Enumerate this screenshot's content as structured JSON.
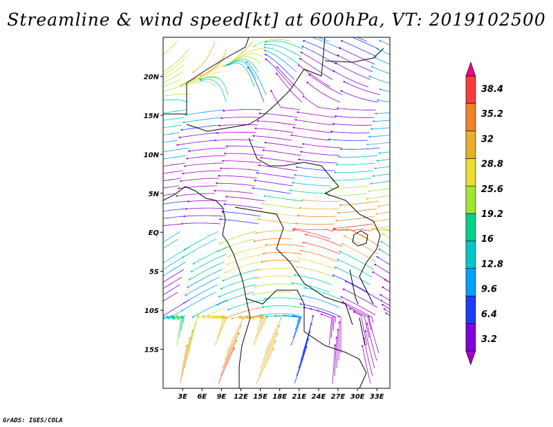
{
  "title": "Streamline & wind speed[kt] at 600hPa, VT: 2019102500",
  "credit": "GrADS: IGES/COLA",
  "map": {
    "lon_range": [
      0,
      35
    ],
    "lat_range": [
      -20,
      25
    ],
    "lon_ticks": [
      "3E",
      "6E",
      "9E",
      "12E",
      "15E",
      "18E",
      "21E",
      "24E",
      "27E",
      "30E",
      "33E"
    ],
    "lon_tick_values": [
      3,
      6,
      9,
      12,
      15,
      18,
      21,
      24,
      27,
      30,
      33
    ],
    "lat_ticks": [
      "20N",
      "15N",
      "10N",
      "5N",
      "EQ",
      "5S",
      "10S",
      "15S"
    ],
    "lat_tick_values": [
      20,
      15,
      10,
      5,
      0,
      -5,
      -10,
      -15
    ]
  },
  "colorbar": {
    "labels": [
      "38.4",
      "35.2",
      "32",
      "28.8",
      "25.6",
      "19.2",
      "16",
      "12.8",
      "9.6",
      "6.4",
      "3.2"
    ],
    "colors": [
      "#a000c8",
      "#8200dc",
      "#1e3cff",
      "#00a0ff",
      "#00c8c8",
      "#00d28c",
      "#a0e632",
      "#e6dc32",
      "#e6af2d",
      "#f08228",
      "#fa3c3c",
      "#f00082"
    ]
  },
  "colors": {
    "background": "#ffffff",
    "frame": "#000000",
    "coast": "#000000"
  }
}
